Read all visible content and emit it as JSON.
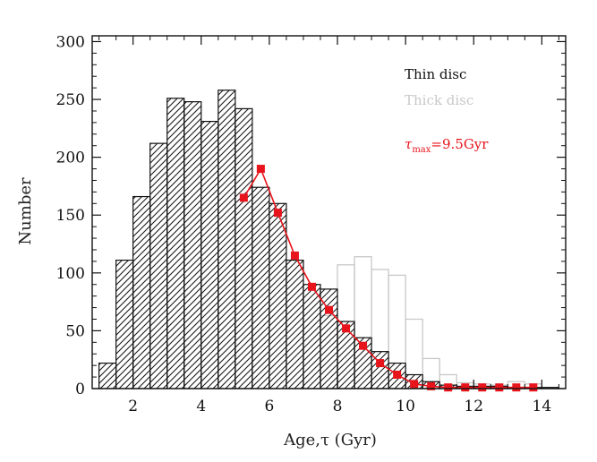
{
  "chart_data": {
    "type": "bar",
    "xlabel": "Age,τ (Gyr)",
    "ylabel": "Number",
    "xlim": [
      0.8,
      14.7
    ],
    "ylim": [
      0,
      305
    ],
    "bin_width": 0.5,
    "x_ticks": [
      2,
      4,
      6,
      8,
      10,
      12,
      14
    ],
    "x_tick_labels": [
      "2",
      "4",
      "6",
      "8",
      "10",
      "12",
      "14"
    ],
    "y_ticks": [
      0,
      50,
      100,
      150,
      200,
      250,
      300
    ],
    "y_tick_labels": [
      "0",
      "50",
      "100",
      "150",
      "200",
      "250",
      "300"
    ],
    "grid": false,
    "legend_position": "top-right",
    "legend": [
      {
        "label": "Thin disc",
        "color": "#111111"
      },
      {
        "label": "Thick disc",
        "color": "#c8c8c8"
      }
    ],
    "annotation": {
      "symbol": "τ",
      "subscript": "max",
      "text": "=9.5Gyr",
      "color": "#e8141c"
    },
    "series": [
      {
        "name": "Thin disc",
        "style": "hatched-bars",
        "color": "#111111",
        "bin_starts": [
          1.0,
          1.5,
          2.0,
          2.5,
          3.0,
          3.5,
          4.0,
          4.5,
          5.0,
          5.5,
          6.0,
          6.5,
          7.0,
          7.5,
          8.0,
          8.5,
          9.0,
          9.5,
          10.0,
          10.5,
          11.0,
          11.5,
          12.0,
          12.5,
          13.0,
          13.5,
          14.0
        ],
        "values": [
          22,
          111,
          166,
          212,
          251,
          248,
          231,
          258,
          242,
          174,
          160,
          111,
          90,
          86,
          58,
          44,
          32,
          22,
          12,
          6,
          3,
          2,
          2,
          2,
          1,
          1,
          1
        ]
      },
      {
        "name": "Thick disc",
        "style": "outline-bars",
        "color": "#c8c8c8",
        "bin_starts": [
          7.5,
          8.0,
          8.5,
          9.0,
          9.5,
          10.0,
          10.5,
          11.0,
          11.5,
          12.0,
          12.5,
          13.0,
          13.5
        ],
        "values": [
          63,
          107,
          114,
          103,
          98,
          60,
          26,
          12,
          5,
          4,
          3,
          6,
          4
        ]
      },
      {
        "name": "",
        "style": "line-with-square-markers",
        "color": "#e8141c",
        "x": [
          5.25,
          5.75,
          6.25,
          6.75,
          7.25,
          7.75,
          8.25,
          8.75,
          9.25,
          9.75,
          10.25,
          10.75,
          11.25,
          11.75,
          12.25,
          12.75,
          13.25,
          13.75
        ],
        "values": [
          165,
          190,
          152,
          115,
          88,
          68,
          52,
          37,
          22,
          12,
          4,
          2,
          1,
          1,
          1,
          1,
          1,
          1
        ]
      }
    ]
  }
}
